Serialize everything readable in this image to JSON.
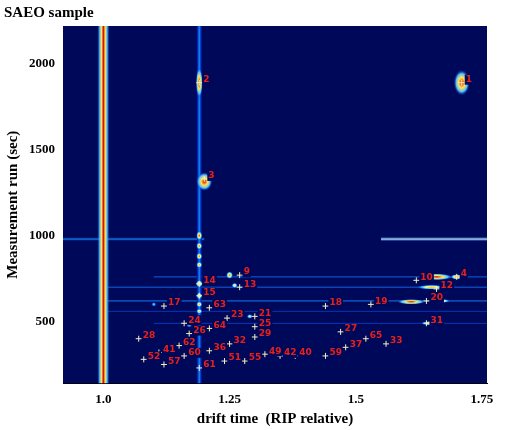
{
  "chart_data": {
    "type": "scatter",
    "title": "SAEO sample",
    "x_label": "drift time  (RIP relative)",
    "y_label": "Measurement run (sec)",
    "xlim": [
      0.92,
      1.76
    ],
    "ylim": [
      140,
      2220
    ],
    "xticks": [
      {
        "value": 1,
        "label": "1.0"
      },
      1.25,
      1.5,
      1.75
    ],
    "yticks": [
      500,
      1000,
      1500,
      2000
    ],
    "grid": false,
    "marker": "cross",
    "color": "#e8201a",
    "peaks": [
      {
        "label": "1",
        "x": 1.71,
        "y": 1890
      },
      {
        "label": "2",
        "x": 1.19,
        "y": 1890
      },
      {
        "label": "3",
        "x": 1.2,
        "y": 1330
      },
      {
        "label": "4",
        "x": 1.7,
        "y": 760
      },
      {
        "label": "9",
        "x": 1.27,
        "y": 770
      },
      {
        "label": "10",
        "x": 1.62,
        "y": 740
      },
      {
        "label": "12",
        "x": 1.66,
        "y": 690
      },
      {
        "label": "13",
        "x": 1.27,
        "y": 700
      },
      {
        "label": "14",
        "x": 1.19,
        "y": 720
      },
      {
        "label": "15",
        "x": 1.19,
        "y": 650
      },
      {
        "label": "17",
        "x": 1.12,
        "y": 590
      },
      {
        "label": "18",
        "x": 1.44,
        "y": 590
      },
      {
        "label": "19",
        "x": 1.53,
        "y": 600
      },
      {
        "label": "20",
        "x": 1.64,
        "y": 620
      },
      {
        "label": "21",
        "x": 1.3,
        "y": 530
      },
      {
        "label": "23",
        "x": 1.245,
        "y": 520
      },
      {
        "label": "24",
        "x": 1.16,
        "y": 490
      },
      {
        "label": "25",
        "x": 1.3,
        "y": 470
      },
      {
        "label": "26",
        "x": 1.17,
        "y": 430
      },
      {
        "label": "27",
        "x": 1.47,
        "y": 440
      },
      {
        "label": "28",
        "x": 1.07,
        "y": 400
      },
      {
        "label": "29",
        "x": 1.3,
        "y": 410
      },
      {
        "label": "31",
        "x": 1.64,
        "y": 490
      },
      {
        "label": "32",
        "x": 1.25,
        "y": 370
      },
      {
        "label": "33",
        "x": 1.56,
        "y": 370
      },
      {
        "label": "36",
        "x": 1.21,
        "y": 330
      },
      {
        "label": "37",
        "x": 1.48,
        "y": 350
      },
      {
        "label": "40",
        "x": 1.38,
        "y": 300
      },
      {
        "label": "41",
        "x": 1.11,
        "y": 320
      },
      {
        "label": "42",
        "x": 1.35,
        "y": 300
      },
      {
        "label": "49",
        "x": 1.32,
        "y": 310
      },
      {
        "label": "51",
        "x": 1.24,
        "y": 270
      },
      {
        "label": "52",
        "x": 1.08,
        "y": 280
      },
      {
        "label": "55",
        "x": 1.28,
        "y": 270
      },
      {
        "label": "57",
        "x": 1.12,
        "y": 250
      },
      {
        "label": "59",
        "x": 1.44,
        "y": 300
      },
      {
        "label": "60",
        "x": 1.16,
        "y": 300
      },
      {
        "label": "61",
        "x": 1.19,
        "y": 230
      },
      {
        "label": "62",
        "x": 1.15,
        "y": 360
      },
      {
        "label": "63",
        "x": 1.21,
        "y": 580
      },
      {
        "label": "64",
        "x": 1.21,
        "y": 460
      },
      {
        "label": "65",
        "x": 1.52,
        "y": 400
      }
    ],
    "horizontal_bands": [
      {
        "y": 980,
        "x0": 0.92,
        "x1": 1.2,
        "height": 12,
        "intensity": 0.35
      },
      {
        "y": 980,
        "x0": 1.55,
        "x1": 1.76,
        "height": 15,
        "intensity": 0.55
      },
      {
        "y": 760,
        "x0": 1.1,
        "x1": 1.76,
        "height": 8,
        "intensity": 0.3
      },
      {
        "y": 700,
        "x0": 1.0,
        "x1": 1.76,
        "height": 8,
        "intensity": 0.3
      },
      {
        "y": 620,
        "x0": 1.0,
        "x1": 1.76,
        "height": 8,
        "intensity": 0.35
      },
      {
        "y": 560,
        "x0": 1.0,
        "x1": 1.76,
        "height": 6,
        "intensity": 0.25
      },
      {
        "y": 490,
        "x0": 1.1,
        "x1": 1.76,
        "height": 6,
        "intensity": 0.25
      }
    ],
    "vertical_bands": [
      {
        "x": 1.19,
        "y0": 140,
        "y1": 2220,
        "width": 0.006,
        "intensity": 0.35
      },
      {
        "x": 1.0,
        "y0": 140,
        "y1": 2220,
        "width": 0.012,
        "intensity": 1
      }
    ],
    "signals": [
      {
        "x": 1.1,
        "y": 600,
        "dx": 0.005,
        "dy": 14,
        "intensity": 0.5
      },
      {
        "x": 1.17,
        "y": 480,
        "dx": 0.006,
        "dy": 14,
        "intensity": 0.6
      },
      {
        "x": 1.29,
        "y": 530,
        "dx": 0.006,
        "dy": 14,
        "intensity": 0.65
      },
      {
        "x": 1.26,
        "y": 710,
        "dx": 0.006,
        "dy": 16,
        "intensity": 0.75
      },
      {
        "x": 1.19,
        "y": 560,
        "dx": 0.006,
        "dy": 16,
        "intensity": 0.8
      },
      {
        "x": 1.67,
        "y": 620,
        "dx": 0.018,
        "dy": 12,
        "intensity": 0.8
      },
      {
        "x": 1.19,
        "y": 830,
        "dx": 0.006,
        "dy": 20,
        "intensity": 0.85
      },
      {
        "x": 1.19,
        "y": 650,
        "dx": 0.006,
        "dy": 20,
        "intensity": 0.85
      },
      {
        "x": 1.19,
        "y": 600,
        "dx": 0.006,
        "dy": 18,
        "intensity": 0.85
      },
      {
        "x": 1.65,
        "y": 700,
        "dx": 0.03,
        "dy": 14,
        "intensity": 0.85
      },
      {
        "x": 1.65,
        "y": 490,
        "dx": 0.022,
        "dy": 14,
        "intensity": 0.85
      },
      {
        "x": 1.19,
        "y": 940,
        "dx": 0.006,
        "dy": 22,
        "intensity": 0.9
      },
      {
        "x": 1.19,
        "y": 880,
        "dx": 0.006,
        "dy": 22,
        "intensity": 0.9
      },
      {
        "x": 1.19,
        "y": 720,
        "dx": 0.007,
        "dy": 22,
        "intensity": 0.9
      },
      {
        "x": 1.25,
        "y": 770,
        "dx": 0.007,
        "dy": 22,
        "intensity": 0.9
      },
      {
        "x": 1.19,
        "y": 1000,
        "dx": 0.006,
        "dy": 28,
        "intensity": 0.95
      },
      {
        "x": 1.19,
        "y": 1890,
        "dx": 0.007,
        "dy": 90,
        "intensity": 1
      },
      {
        "x": 1.71,
        "y": 1890,
        "dx": 0.016,
        "dy": 75,
        "intensity": 1
      },
      {
        "x": 1.2,
        "y": 1315,
        "dx": 0.016,
        "dy": 55,
        "intensity": 1
      },
      {
        "x": 1.66,
        "y": 760,
        "dx": 0.032,
        "dy": 20,
        "intensity": 1
      },
      {
        "x": 1.61,
        "y": 615,
        "dx": 0.028,
        "dy": 16,
        "intensity": 1
      },
      {
        "x": 1.7,
        "y": 760,
        "dx": 0.012,
        "dy": 16,
        "intensity": 1
      }
    ]
  }
}
